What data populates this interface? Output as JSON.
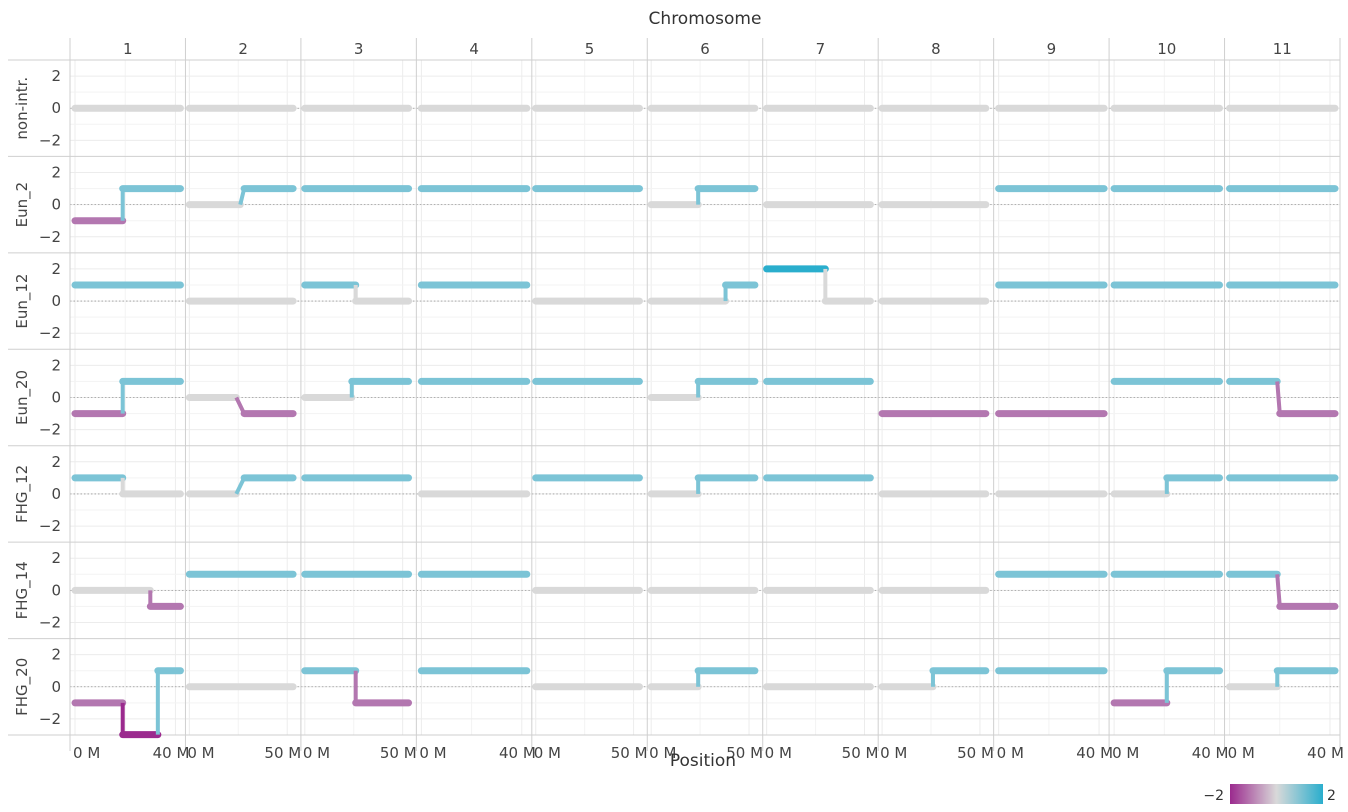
{
  "chart_data": {
    "type": "line",
    "title": "",
    "facet_column_title": "Chromosome",
    "xlabel": "Position",
    "ylabel": "",
    "chromosomes": [
      "1",
      "2",
      "3",
      "4",
      "5",
      "6",
      "7",
      "8",
      "9",
      "10",
      "11"
    ],
    "rows": [
      "non-intr.",
      "Eun_2",
      "Eun_12",
      "Eun_20",
      "FHG_12",
      "FHG_14",
      "FHG_20"
    ],
    "x_ticks_by_chromosome": [
      [
        0,
        40
      ],
      [
        0,
        50
      ],
      [
        0,
        50
      ],
      [
        0,
        40
      ],
      [
        0,
        50
      ],
      [
        0,
        50
      ],
      [
        0,
        50
      ],
      [
        0,
        50
      ],
      [
        0,
        40
      ],
      [
        0,
        40
      ],
      [
        0,
        40
      ]
    ],
    "x_tick_labels_by_chromosome": [
      [
        "0 M",
        "40 M"
      ],
      [
        "0 M",
        "50 M"
      ],
      [
        "0 M",
        "50 M"
      ],
      [
        "0 M",
        "40 M"
      ],
      [
        "0 M",
        "50 M"
      ],
      [
        "0 M",
        "50 M"
      ],
      [
        "0 M",
        "50 M"
      ],
      [
        "0 M",
        "50 M"
      ],
      [
        "0 M",
        "40 M"
      ],
      [
        "0 M",
        "40 M"
      ],
      [
        "0 M",
        "40 M"
      ]
    ],
    "x_range_by_chromosome": [
      [
        -2,
        44
      ],
      [
        -2,
        57
      ],
      [
        -2,
        57
      ],
      [
        -2,
        44
      ],
      [
        -2,
        57
      ],
      [
        -2,
        57
      ],
      [
        -2,
        57
      ],
      [
        -2,
        57
      ],
      [
        -2,
        44
      ],
      [
        -2,
        44
      ],
      [
        -2,
        44
      ]
    ],
    "y_ticks": [
      2,
      0,
      -2
    ],
    "y_tick_labels": [
      "2",
      "0",
      "-2"
    ],
    "ylim": [
      -3,
      3
    ],
    "grid": true,
    "color_scale": {
      "min": -2,
      "max": 2,
      "min_label": "−2",
      "max_label": "2",
      "colors": [
        "#9b2a8e",
        "#d9d9d9",
        "#2aaecd"
      ],
      "placement": "bottom-right"
    },
    "segment_color_by_value": {
      "-2": "#9b2a8e",
      "-1": "#b377b0",
      "0": "#d9d9d9",
      "1": "#7cc4d6",
      "2": "#2aaecd"
    },
    "segments": {
      "non-intr.": [
        [
          [
            0,
            42,
            0
          ]
        ],
        [
          [
            0,
            53,
            0
          ]
        ],
        [
          [
            0,
            53,
            0
          ]
        ],
        [
          [
            0,
            42,
            0
          ]
        ],
        [
          [
            0,
            53,
            0
          ]
        ],
        [
          [
            0,
            53,
            0
          ]
        ],
        [
          [
            0,
            53,
            0
          ]
        ],
        [
          [
            0,
            53,
            0
          ]
        ],
        [
          [
            0,
            42,
            0
          ]
        ],
        [
          [
            0,
            42,
            0
          ]
        ],
        [
          [
            0,
            42,
            0
          ]
        ]
      ],
      "Eun_2": [
        [
          [
            0,
            19,
            -1
          ],
          [
            19,
            42,
            1
          ]
        ],
        [
          [
            0,
            26,
            0
          ],
          [
            28,
            53,
            1
          ]
        ],
        [
          [
            0,
            53,
            1
          ]
        ],
        [
          [
            0,
            42,
            1
          ]
        ],
        [
          [
            0,
            53,
            1
          ]
        ],
        [
          [
            0,
            24,
            0
          ],
          [
            24,
            53,
            1
          ]
        ],
        [
          [
            0,
            53,
            0
          ]
        ],
        [
          [
            0,
            53,
            0
          ]
        ],
        [
          [
            0,
            42,
            1
          ]
        ],
        [
          [
            0,
            42,
            1
          ]
        ],
        [
          [
            0,
            42,
            1
          ]
        ]
      ],
      "Eun_12": [
        [
          [
            0,
            42,
            1
          ]
        ],
        [
          [
            0,
            53,
            0
          ]
        ],
        [
          [
            0,
            26,
            1
          ],
          [
            26,
            53,
            0
          ]
        ],
        [
          [
            0,
            42,
            1
          ]
        ],
        [
          [
            0,
            53,
            0
          ]
        ],
        [
          [
            0,
            38,
            0
          ],
          [
            38,
            53,
            1
          ]
        ],
        [
          [
            0,
            30,
            2
          ],
          [
            30,
            53,
            0
          ]
        ],
        [
          [
            0,
            53,
            0
          ]
        ],
        [
          [
            0,
            42,
            1
          ]
        ],
        [
          [
            0,
            42,
            1
          ]
        ],
        [
          [
            0,
            42,
            1
          ]
        ]
      ],
      "Eun_20": [
        [
          [
            0,
            19,
            -1
          ],
          [
            19,
            42,
            1
          ]
        ],
        [
          [
            0,
            24,
            0
          ],
          [
            28,
            53,
            -1
          ]
        ],
        [
          [
            0,
            24,
            0
          ],
          [
            24,
            53,
            1
          ]
        ],
        [
          [
            0,
            42,
            1
          ]
        ],
        [
          [
            0,
            53,
            1
          ]
        ],
        [
          [
            0,
            24,
            0
          ],
          [
            24,
            53,
            1
          ]
        ],
        [
          [
            0,
            53,
            1
          ]
        ],
        [
          [
            0,
            53,
            -1
          ]
        ],
        [
          [
            0,
            42,
            -1
          ]
        ],
        [
          [
            0,
            42,
            1
          ]
        ],
        [
          [
            0,
            19,
            1
          ],
          [
            20,
            42,
            -1
          ]
        ]
      ],
      "FHG_12": [
        [
          [
            0,
            19,
            1
          ],
          [
            19,
            42,
            0
          ]
        ],
        [
          [
            0,
            24,
            0
          ],
          [
            28,
            53,
            1
          ]
        ],
        [
          [
            0,
            53,
            1
          ]
        ],
        [
          [
            0,
            42,
            0
          ]
        ],
        [
          [
            0,
            53,
            1
          ]
        ],
        [
          [
            0,
            24,
            0
          ],
          [
            24,
            53,
            1
          ]
        ],
        [
          [
            0,
            53,
            1
          ]
        ],
        [
          [
            0,
            53,
            0
          ]
        ],
        [
          [
            0,
            42,
            0
          ]
        ],
        [
          [
            0,
            21,
            0
          ],
          [
            21,
            42,
            1
          ]
        ],
        [
          [
            0,
            42,
            1
          ]
        ]
      ],
      "FHG_14": [
        [
          [
            0,
            30,
            0
          ],
          [
            30,
            42,
            -1
          ]
        ],
        [
          [
            0,
            53,
            1
          ]
        ],
        [
          [
            0,
            53,
            1
          ]
        ],
        [
          [
            0,
            42,
            1
          ]
        ],
        [
          [
            0,
            53,
            0
          ]
        ],
        [
          [
            0,
            53,
            0
          ]
        ],
        [
          [
            0,
            53,
            0
          ]
        ],
        [
          [
            0,
            53,
            0
          ]
        ],
        [
          [
            0,
            42,
            1
          ]
        ],
        [
          [
            0,
            42,
            1
          ]
        ],
        [
          [
            0,
            19,
            1
          ],
          [
            20,
            42,
            -1
          ]
        ]
      ],
      "FHG_20": [
        [
          [
            0,
            19,
            -1
          ],
          [
            19,
            33,
            -3
          ],
          [
            33,
            42,
            1
          ]
        ],
        [
          [
            0,
            53,
            0
          ]
        ],
        [
          [
            0,
            26,
            1
          ],
          [
            26,
            53,
            -1
          ]
        ],
        [
          [
            0,
            42,
            1
          ]
        ],
        [
          [
            0,
            53,
            0
          ]
        ],
        [
          [
            0,
            24,
            0
          ],
          [
            24,
            53,
            1
          ]
        ],
        [
          [
            0,
            53,
            0
          ]
        ],
        [
          [
            0,
            26,
            0
          ],
          [
            26,
            53,
            1
          ]
        ],
        [
          [
            0,
            42,
            1
          ]
        ],
        [
          [
            0,
            21,
            -1
          ],
          [
            21,
            42,
            1
          ]
        ],
        [
          [
            0,
            19,
            0
          ],
          [
            19,
            42,
            1
          ]
        ]
      ]
    }
  }
}
